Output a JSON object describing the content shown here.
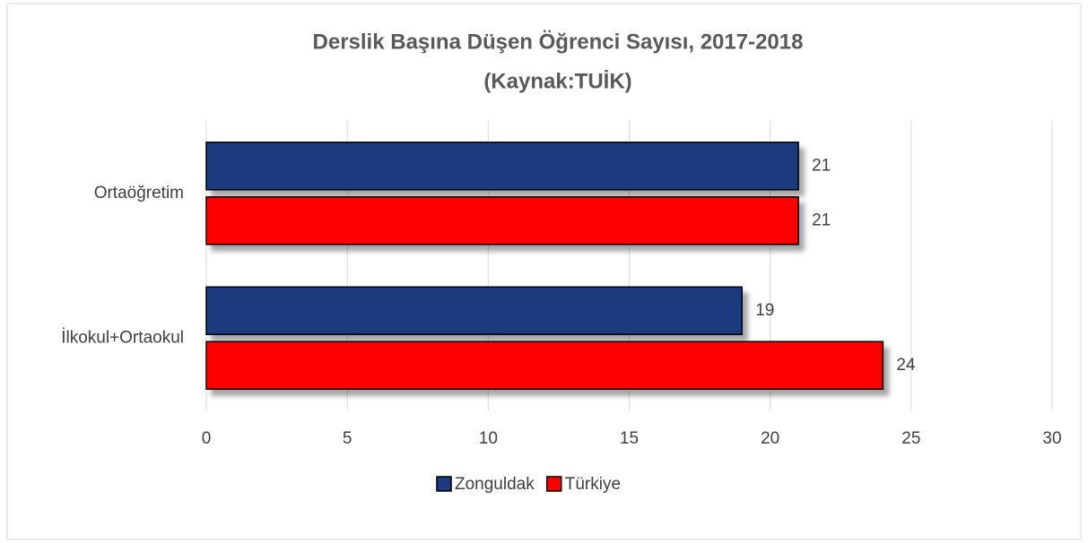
{
  "chart_data": {
    "type": "hbar",
    "title": "Derslik Başına Düşen Öğrenci Sayısı, 2017-2018",
    "subtitle": "(Kaynak:TUİK)",
    "categories": [
      "Ortaöğretim",
      "İlkokul+Ortaokul"
    ],
    "series": [
      {
        "name": "Zonguldak",
        "color": "#1f3a7f",
        "values": [
          21,
          19
        ]
      },
      {
        "name": "Türkiye",
        "color": "#ff0000",
        "values": [
          21,
          24
        ]
      }
    ],
    "xlim": [
      0,
      30
    ],
    "xticks": [
      0,
      5,
      10,
      15,
      20,
      25,
      30
    ],
    "grid": true,
    "legend": "bottom"
  }
}
